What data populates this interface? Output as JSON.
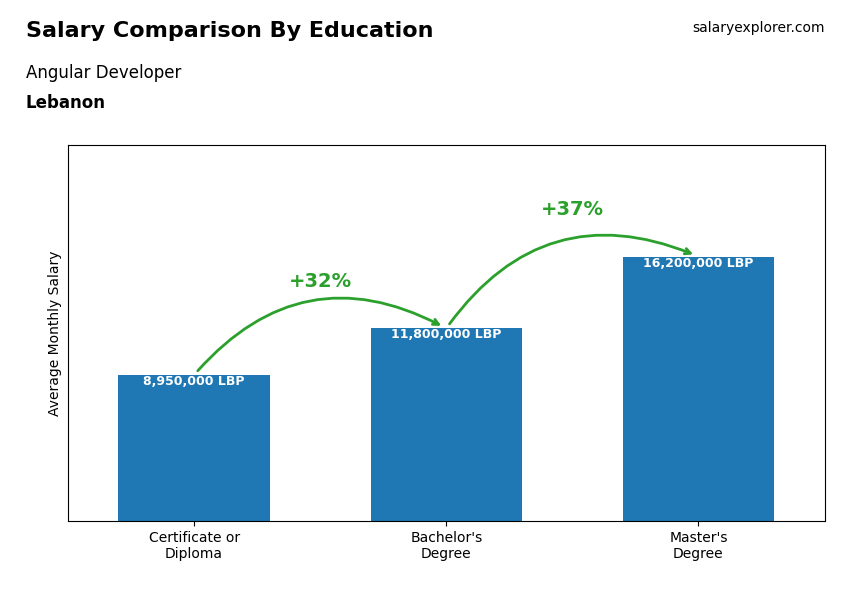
{
  "chart_data": {
    "type": "bar",
    "title": "Salary Comparison By Education",
    "subtitle": "Angular Developer",
    "country": "Lebanon",
    "website": "salaryexplorer.com",
    "ylabel": "Average Monthly Salary",
    "categories": [
      "Certificate or\nDiploma",
      "Bachelor's\nDegree",
      "Master's\nDegree"
    ],
    "values": [
      8950000,
      11800000,
      16200000
    ],
    "value_labels": [
      "8,950,000 LBP",
      "11,800,000 LBP",
      "16,200,000 LBP"
    ],
    "data_labels": true,
    "pct_labels": [
      "+32%",
      "+37%"
    ],
    "ylim": [
      0,
      23000000
    ],
    "tick_labels": "x",
    "grid": false
  }
}
